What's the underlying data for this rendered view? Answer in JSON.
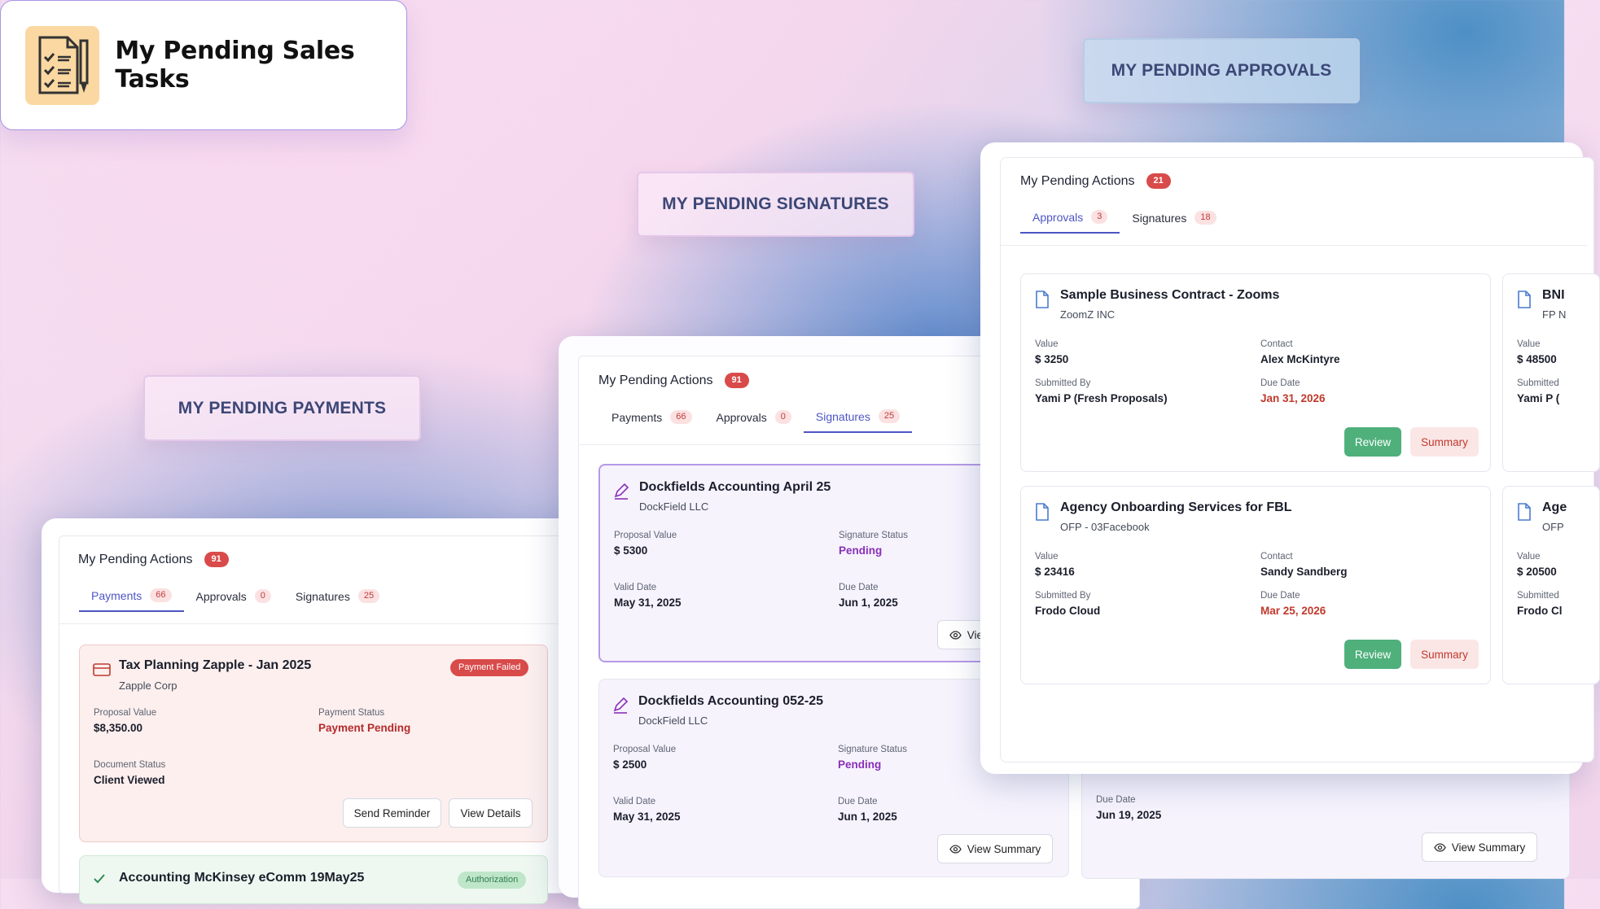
{
  "hero": {
    "title": "My Pending Sales Tasks"
  },
  "pills": {
    "approvals": "MY PENDING APPROVALS",
    "signatures": "MY PENDING SIGNATURES",
    "payments": "MY PENDING PAYMENTS"
  },
  "payments_panel": {
    "title": "My Pending Actions",
    "count": "91",
    "tabs": [
      {
        "label": "Payments",
        "count": "66"
      },
      {
        "label": "Approvals",
        "count": "0"
      },
      {
        "label": "Signatures",
        "count": "25"
      }
    ],
    "card1": {
      "title": "Tax Planning Zapple - Jan 2025",
      "company": "Zapple Corp",
      "badge": "Payment Failed",
      "label1": "Proposal Value",
      "value1": "$8,350.00",
      "label2": "Payment Status",
      "value2": "Payment Pending",
      "label3": "Document Status",
      "value3": "Client Viewed",
      "btn1": "Send Reminder",
      "btn2": "View Details"
    },
    "card2": {
      "title": "Accounting McKinsey eComm 19May25",
      "badge": "Authorization"
    }
  },
  "signatures_panel": {
    "title": "My Pending Actions",
    "count": "91",
    "tabs": [
      {
        "label": "Payments",
        "count": "66"
      },
      {
        "label": "Approvals",
        "count": "0"
      },
      {
        "label": "Signatures",
        "count": "25"
      }
    ],
    "cards": [
      {
        "title": "Dockfields Accounting April 25",
        "company": "DockField LLC",
        "label1": "Proposal Value",
        "value1": "$ 5300",
        "label2": "Signature Status",
        "value2": "Pending",
        "label3": "Valid Date",
        "value3": "May 31, 2025",
        "label4": "Due Date",
        "value4": "Jun 1, 2025",
        "btn": "View Summary"
      },
      {
        "title": "Dockfields Accounting 052-25",
        "company": "DockField LLC",
        "label1": "Proposal Value",
        "value1": "$ 2500",
        "label2": "Signature Status",
        "value2": "Pending",
        "label3": "Valid Date",
        "value3": "May 31, 2025",
        "label4": "Due Date",
        "value4": "Jun 1, 2025",
        "btn": "View Summary"
      }
    ],
    "right_card": {
      "label": "Due Date",
      "value": "Jun 19, 2025",
      "btn": "View Summary"
    }
  },
  "approvals_panel": {
    "title": "My Pending Actions",
    "count": "21",
    "tabs": [
      {
        "label": "Approvals",
        "count": "3"
      },
      {
        "label": "Signatures",
        "count": "18"
      }
    ],
    "cards": [
      {
        "title": "Sample Business Contract - Zooms",
        "company": "ZoomZ INC",
        "label1": "Value",
        "value1": "$ 3250",
        "label2": "Contact",
        "value2": "Alex McKintyre",
        "label3": "Submitted By",
        "value3": "Yami P (Fresh Proposals)",
        "label4": "Due Date",
        "value4": "Jan 31, 2026",
        "review": "Review",
        "summary": "Summary"
      },
      {
        "title": "Agency Onboarding Services for FBL",
        "company": "OFP - 03Facebook",
        "label1": "Value",
        "value1": "$ 23416",
        "label2": "Contact",
        "value2": "Sandy Sandberg",
        "label3": "Submitted By",
        "value3": "Frodo Cloud",
        "label4": "Due Date",
        "value4": "Mar 25, 2026",
        "review": "Review",
        "summary": "Summary"
      }
    ],
    "peek": [
      {
        "title": "BNI",
        "company": "FP N",
        "label1": "Value",
        "value1": "$ 48500",
        "label3": "Submitted",
        "value3": "Yami P ("
      },
      {
        "title": "Age",
        "company": "OFP",
        "label1": "Value",
        "value1": "$ 20500",
        "label3": "Submitted",
        "value3": "Frodo Cl"
      }
    ]
  },
  "colors": {
    "accent": "#4d55c4",
    "danger": "#d94a4a",
    "pending_purple": "#8a2fb8",
    "success": "#4fb07c"
  }
}
